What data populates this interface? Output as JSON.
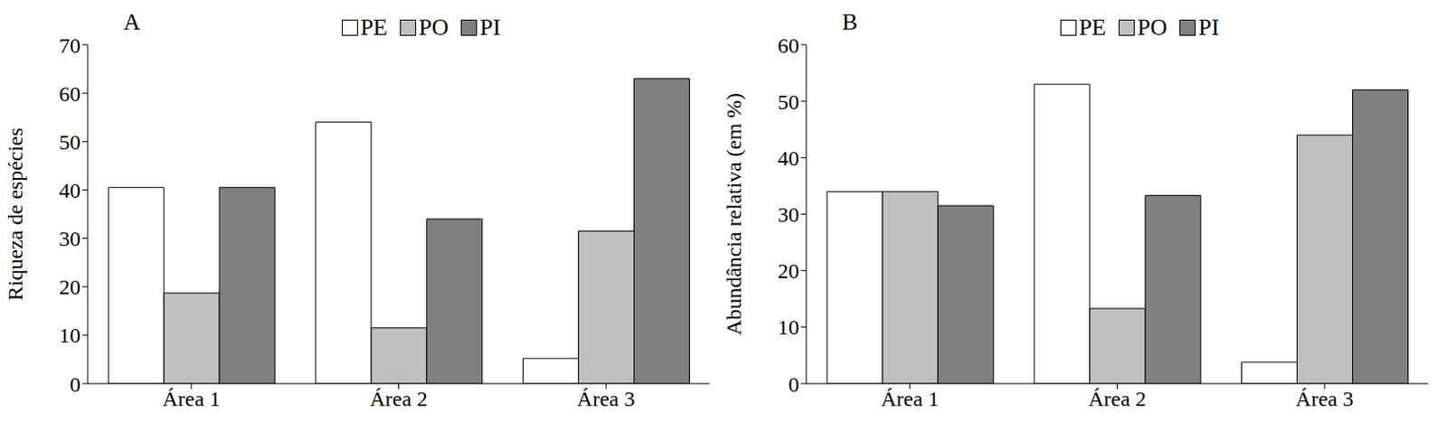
{
  "chart_data": [
    {
      "type": "bar",
      "title": "A",
      "y_label": "Riqueza de espécies",
      "categories": [
        "Área 1",
        "Área 2",
        "Área 3"
      ],
      "series": [
        {
          "name": "PE",
          "color": "#ffffff",
          "values": [
            40.5,
            54,
            5.2
          ]
        },
        {
          "name": "PO",
          "color": "#c0c0c0",
          "values": [
            18.7,
            11.5,
            31.5
          ]
        },
        {
          "name": "PI",
          "color": "#808080",
          "values": [
            40.5,
            34,
            63
          ]
        }
      ],
      "ylim": [
        0,
        70
      ],
      "yticks": [
        0,
        10,
        20,
        30,
        40,
        50,
        60,
        70
      ],
      "grid": false,
      "legend": "top"
    },
    {
      "type": "bar",
      "title": "B",
      "y_label": "Abundância relativa (em %)",
      "categories": [
        "Área 1",
        "Área 2",
        "Área 3"
      ],
      "series": [
        {
          "name": "PE",
          "color": "#ffffff",
          "values": [
            34,
            53,
            3.8
          ]
        },
        {
          "name": "PO",
          "color": "#c0c0c0",
          "values": [
            34,
            13.3,
            44
          ]
        },
        {
          "name": "PI",
          "color": "#808080",
          "values": [
            31.5,
            33.3,
            52
          ]
        }
      ],
      "ylim": [
        0,
        60
      ],
      "yticks": [
        0,
        10,
        20,
        30,
        40,
        50,
        60
      ],
      "grid": false,
      "legend": "top"
    }
  ]
}
